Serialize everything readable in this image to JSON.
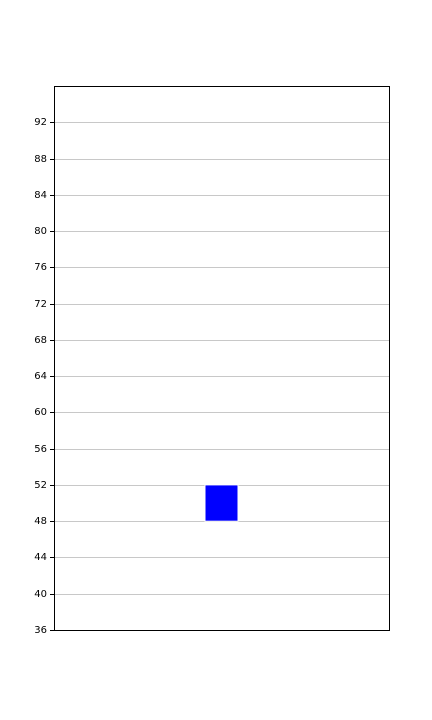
{
  "chart_data": {
    "type": "bar",
    "title": "",
    "xlabel": "",
    "ylabel": "",
    "ylim": [
      36,
      96
    ],
    "yticks": [
      36,
      40,
      44,
      48,
      52,
      56,
      60,
      64,
      68,
      72,
      76,
      80,
      84,
      88,
      92
    ],
    "ytick_labels": [
      "36",
      "40",
      "44",
      "48",
      "52",
      "56",
      "60",
      "64",
      "68",
      "72",
      "76",
      "80",
      "84",
      "88",
      "92"
    ],
    "grid": true,
    "legend": "none",
    "bars": [
      {
        "category_position": 0.5,
        "bottom": 48,
        "top": 52
      }
    ],
    "bar_color": "#0000ff",
    "grid_color": "#c8c8c8",
    "axis_color": "#000000"
  }
}
